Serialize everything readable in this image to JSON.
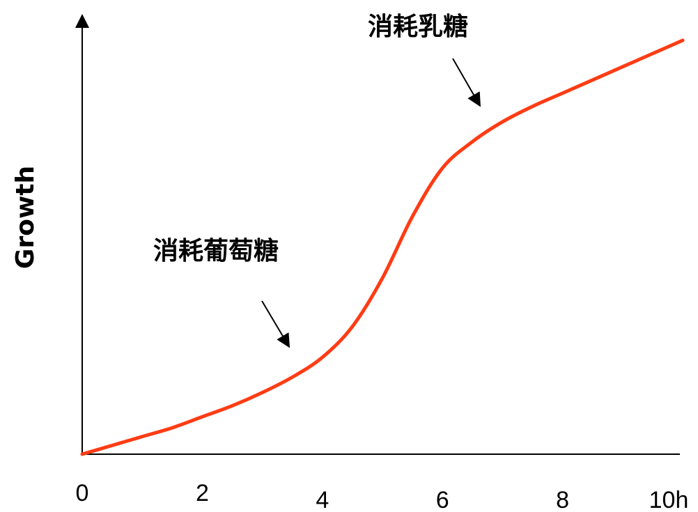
{
  "chart_data": {
    "type": "line",
    "ylabel": "Growth",
    "x_ticks": [
      {
        "label": "0",
        "x": 0
      },
      {
        "label": "2",
        "x": 2
      },
      {
        "label": "4",
        "x": 4
      },
      {
        "label": "6",
        "x": 6
      },
      {
        "label": "8",
        "x": 8
      },
      {
        "label": "10h",
        "x": 10
      }
    ],
    "xlim": [
      0,
      10
    ],
    "ylim": [
      0,
      1.0
    ],
    "grid": false,
    "series": [
      {
        "color": "#ff3c14",
        "x": [
          0,
          0.5,
          1,
          1.5,
          2,
          2.5,
          3,
          3.5,
          4,
          4.5,
          5,
          5.5,
          6,
          6.5,
          7,
          7.5,
          8,
          8.5,
          9,
          9.5,
          10
        ],
        "y": [
          0.0,
          0.02,
          0.04,
          0.06,
          0.085,
          0.11,
          0.14,
          0.175,
          0.22,
          0.29,
          0.4,
          0.54,
          0.65,
          0.71,
          0.755,
          0.79,
          0.82,
          0.85,
          0.88,
          0.91,
          0.94
        ]
      }
    ],
    "annotations": [
      {
        "text": "消耗葡萄糖",
        "arrow_to_x": 3.5
      },
      {
        "text": "消耗乳糖",
        "arrow_to_x": 7.0
      }
    ]
  }
}
